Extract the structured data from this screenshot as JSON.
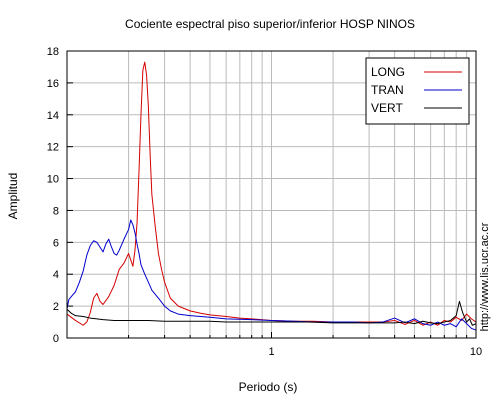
{
  "chart_data": {
    "type": "line",
    "title": "Cociente espectral piso superior/inferior  HOSP NINOS",
    "xlabel": "Periodo (s)",
    "ylabel": "Amplitud",
    "xscale": "log",
    "xlim": [
      0.1,
      10
    ],
    "ylim": [
      0,
      18
    ],
    "x_ticks": [
      {
        "value": 1,
        "label": "1"
      },
      {
        "value": 10,
        "label": "10"
      }
    ],
    "y_ticks": [
      0,
      2,
      4,
      6,
      8,
      10,
      12,
      14,
      16,
      18
    ],
    "grid": true,
    "legend_position": "top-right",
    "side_text": "http://www.lis.ucr.ac.cr",
    "series": [
      {
        "name": "LONG",
        "color": "#d40000",
        "points": [
          [
            0.1,
            1.5
          ],
          [
            0.11,
            1.1
          ],
          [
            0.12,
            0.8
          ],
          [
            0.125,
            1.0
          ],
          [
            0.13,
            1.6
          ],
          [
            0.135,
            2.5
          ],
          [
            0.14,
            2.8
          ],
          [
            0.145,
            2.3
          ],
          [
            0.15,
            2.1
          ],
          [
            0.16,
            2.6
          ],
          [
            0.17,
            3.3
          ],
          [
            0.18,
            4.3
          ],
          [
            0.19,
            4.7
          ],
          [
            0.2,
            5.3
          ],
          [
            0.21,
            4.5
          ],
          [
            0.215,
            5.5
          ],
          [
            0.22,
            7.2
          ],
          [
            0.225,
            10.5
          ],
          [
            0.23,
            14.0
          ],
          [
            0.235,
            16.8
          ],
          [
            0.24,
            17.3
          ],
          [
            0.245,
            16.5
          ],
          [
            0.25,
            14.5
          ],
          [
            0.255,
            11.5
          ],
          [
            0.26,
            9.0
          ],
          [
            0.27,
            7.0
          ],
          [
            0.28,
            5.3
          ],
          [
            0.29,
            4.3
          ],
          [
            0.3,
            3.5
          ],
          [
            0.32,
            2.5
          ],
          [
            0.35,
            2.0
          ],
          [
            0.4,
            1.7
          ],
          [
            0.45,
            1.55
          ],
          [
            0.5,
            1.45
          ],
          [
            0.6,
            1.35
          ],
          [
            0.7,
            1.25
          ],
          [
            0.8,
            1.2
          ],
          [
            1.0,
            1.1
          ],
          [
            1.3,
            1.05
          ],
          [
            1.6,
            1.05
          ],
          [
            2.0,
            1.0
          ],
          [
            2.5,
            1.0
          ],
          [
            3.0,
            1.0
          ],
          [
            3.5,
            1.0
          ],
          [
            4.0,
            1.1
          ],
          [
            4.5,
            0.85
          ],
          [
            5.0,
            1.1
          ],
          [
            5.5,
            0.8
          ],
          [
            6.0,
            1.0
          ],
          [
            6.5,
            0.8
          ],
          [
            7.0,
            1.1
          ],
          [
            7.5,
            1.0
          ],
          [
            8.0,
            1.3
          ],
          [
            8.5,
            1.1
          ],
          [
            9.0,
            1.5
          ],
          [
            9.5,
            1.2
          ],
          [
            10.0,
            1.0
          ]
        ]
      },
      {
        "name": "TRAN",
        "color": "#0000cc",
        "points": [
          [
            0.1,
            1.8
          ],
          [
            0.102,
            2.4
          ],
          [
            0.105,
            2.6
          ],
          [
            0.11,
            2.9
          ],
          [
            0.115,
            3.5
          ],
          [
            0.12,
            4.2
          ],
          [
            0.125,
            5.2
          ],
          [
            0.13,
            5.8
          ],
          [
            0.135,
            6.1
          ],
          [
            0.14,
            6.0
          ],
          [
            0.145,
            5.7
          ],
          [
            0.15,
            5.4
          ],
          [
            0.155,
            5.9
          ],
          [
            0.16,
            6.2
          ],
          [
            0.165,
            5.7
          ],
          [
            0.17,
            5.3
          ],
          [
            0.175,
            5.2
          ],
          [
            0.18,
            5.5
          ],
          [
            0.19,
            6.2
          ],
          [
            0.2,
            6.8
          ],
          [
            0.205,
            7.4
          ],
          [
            0.21,
            7.1
          ],
          [
            0.215,
            6.6
          ],
          [
            0.22,
            5.9
          ],
          [
            0.225,
            5.3
          ],
          [
            0.23,
            4.6
          ],
          [
            0.24,
            4.0
          ],
          [
            0.25,
            3.5
          ],
          [
            0.26,
            3.0
          ],
          [
            0.28,
            2.5
          ],
          [
            0.3,
            2.0
          ],
          [
            0.32,
            1.7
          ],
          [
            0.35,
            1.5
          ],
          [
            0.4,
            1.4
          ],
          [
            0.5,
            1.3
          ],
          [
            0.6,
            1.2
          ],
          [
            0.8,
            1.15
          ],
          [
            1.0,
            1.1
          ],
          [
            1.3,
            1.05
          ],
          [
            1.6,
            1.0
          ],
          [
            2.0,
            1.0
          ],
          [
            2.5,
            1.0
          ],
          [
            3.0,
            0.95
          ],
          [
            3.5,
            1.0
          ],
          [
            4.0,
            1.25
          ],
          [
            4.5,
            0.95
          ],
          [
            5.0,
            1.2
          ],
          [
            5.5,
            0.9
          ],
          [
            6.0,
            0.8
          ],
          [
            6.5,
            1.0
          ],
          [
            7.0,
            0.8
          ],
          [
            7.5,
            0.9
          ],
          [
            8.0,
            0.7
          ],
          [
            8.5,
            1.2
          ],
          [
            9.0,
            0.9
          ],
          [
            9.5,
            0.6
          ],
          [
            10.0,
            0.5
          ]
        ]
      },
      {
        "name": "VERT",
        "color": "#000000",
        "points": [
          [
            0.1,
            1.8
          ],
          [
            0.105,
            1.55
          ],
          [
            0.11,
            1.4
          ],
          [
            0.12,
            1.35
          ],
          [
            0.13,
            1.25
          ],
          [
            0.14,
            1.2
          ],
          [
            0.15,
            1.15
          ],
          [
            0.17,
            1.1
          ],
          [
            0.2,
            1.1
          ],
          [
            0.25,
            1.1
          ],
          [
            0.3,
            1.05
          ],
          [
            0.4,
            1.05
          ],
          [
            0.5,
            1.05
          ],
          [
            0.6,
            1.0
          ],
          [
            0.8,
            1.0
          ],
          [
            1.0,
            1.0
          ],
          [
            1.5,
            1.0
          ],
          [
            2.0,
            0.95
          ],
          [
            2.5,
            0.95
          ],
          [
            3.0,
            0.95
          ],
          [
            3.5,
            0.95
          ],
          [
            4.0,
            0.95
          ],
          [
            4.5,
            1.0
          ],
          [
            5.0,
            0.9
          ],
          [
            5.5,
            1.05
          ],
          [
            6.0,
            0.95
          ],
          [
            6.5,
            0.9
          ],
          [
            7.0,
            1.0
          ],
          [
            7.5,
            1.1
          ],
          [
            8.0,
            1.4
          ],
          [
            8.3,
            2.3
          ],
          [
            8.6,
            1.6
          ],
          [
            9.0,
            1.0
          ],
          [
            9.3,
            1.2
          ],
          [
            9.6,
            0.8
          ],
          [
            10.0,
            0.9
          ]
        ]
      }
    ]
  }
}
